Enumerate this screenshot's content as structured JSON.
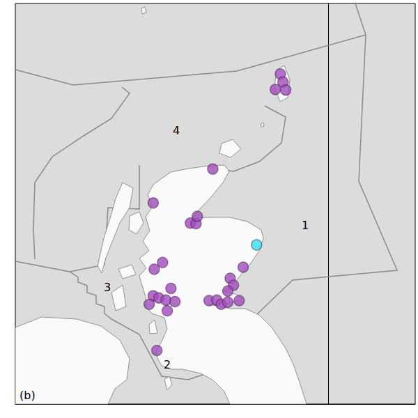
{
  "chart_data": {
    "type": "scatter",
    "x": [
      -1.43,
      -1.35,
      -1.58,
      -1.27,
      -3.45,
      -5.23,
      -4.12,
      -3.95,
      -3.91,
      -2.14,
      -2.54,
      -4.95,
      -5.2,
      -2.93,
      -2.83,
      -3.0,
      -3.56,
      -3.33,
      -3.2,
      -3.0,
      -2.66,
      -4.7,
      -5.23,
      -5.06,
      -4.85,
      -4.58,
      -5.35,
      -4.81,
      -5.12
    ],
    "y": [
      60.37,
      60.22,
      60.08,
      60.07,
      58.58,
      57.94,
      57.56,
      57.55,
      57.69,
      57.15,
      56.73,
      56.82,
      56.69,
      56.52,
      56.39,
      56.28,
      56.1,
      56.11,
      56.03,
      56.07,
      56.1,
      56.33,
      56.19,
      56.15,
      56.11,
      56.08,
      56.03,
      55.91,
      55.16
    ],
    "colors": [
      "#a04cbc",
      "#a04cbc",
      "#a04cbc",
      "#a04cbc",
      "#a04cbc",
      "#a04cbc",
      "#a04cbc",
      "#a04cbc",
      "#a04cbc",
      "#33e0ee",
      "#a04cbc",
      "#a04cbc",
      "#a04cbc",
      "#a04cbc",
      "#a04cbc",
      "#a04cbc",
      "#a04cbc",
      "#a04cbc",
      "#a04cbc",
      "#a04cbc",
      "#a04cbc",
      "#a04cbc",
      "#a04cbc",
      "#a04cbc",
      "#a04cbc",
      "#a04cbc",
      "#a04cbc",
      "#a04cbc",
      "#a04cbc"
    ],
    "xlim": [
      -9.35,
      2.6
    ],
    "ylim": [
      54.15,
      61.7
    ],
    "tick_labels": false,
    "grid": false,
    "marker": "circle",
    "annotations": [
      "1",
      "2",
      "3",
      "4",
      "(b)"
    ]
  }
}
